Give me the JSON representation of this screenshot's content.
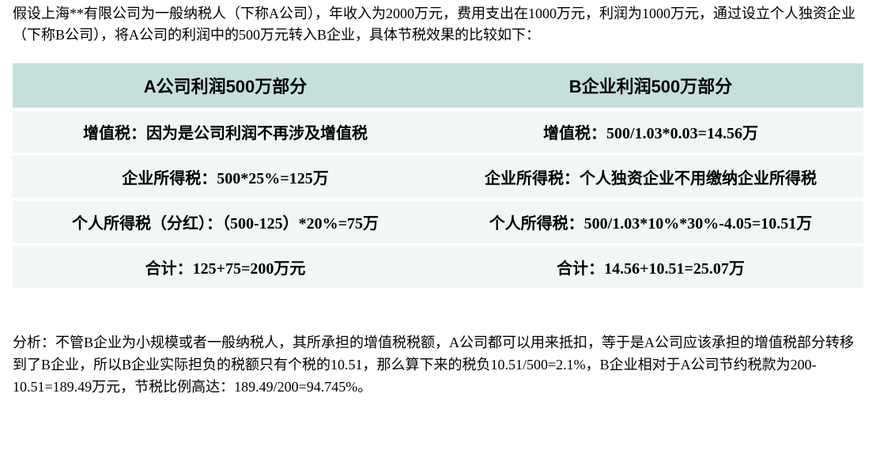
{
  "intro": "假设上海**有限公司为一般纳税人（下称A公司），年收入为2000万元，费用支出在1000万元，利润为1000万元，通过设立个人独资企业（下称B公司），将A公司的利润中的500万元转入B企业，具体节税效果的比较如下：",
  "table": {
    "type": "table",
    "background_color": "#ffffff",
    "header_bg": "#c5dfdd",
    "row_bg": "#f1f6f6",
    "header_fontsize": 22,
    "cell_fontsize": 20,
    "text_color": "#000000",
    "col_widths": [
      "50%",
      "50%"
    ],
    "columns": [
      "A公司利润500万部分",
      "B企业利润500万部分"
    ],
    "rows": [
      [
        "增值税：因为是公司利润不再涉及增值税",
        "增值税：500/1.03*0.03=14.56万"
      ],
      [
        "企业所得税：500*25%=125万",
        "企业所得税：个人独资企业不用缴纳企业所得税"
      ],
      [
        "个人所得税（分红）：（500-125）*20%=75万",
        "个人所得税：500/1.03*10%*30%-4.05=10.51万"
      ],
      [
        "合计：125+75=200万元",
        "合计：14.56+10.51=25.07万"
      ]
    ]
  },
  "analysis": "分析：不管B企业为小规模或者一般纳税人，其所承担的增值税税额，A公司都可以用来抵扣，等于是A公司应该承担的增值税部分转移到了B企业，所以B企业实际担负的税额只有个税的10.51，那么算下来的税负10.51/500=2.1%，B企业相对于A公司节约税款为200-10.51=189.49万元，节税比例高达：189.49/200=94.745%。"
}
